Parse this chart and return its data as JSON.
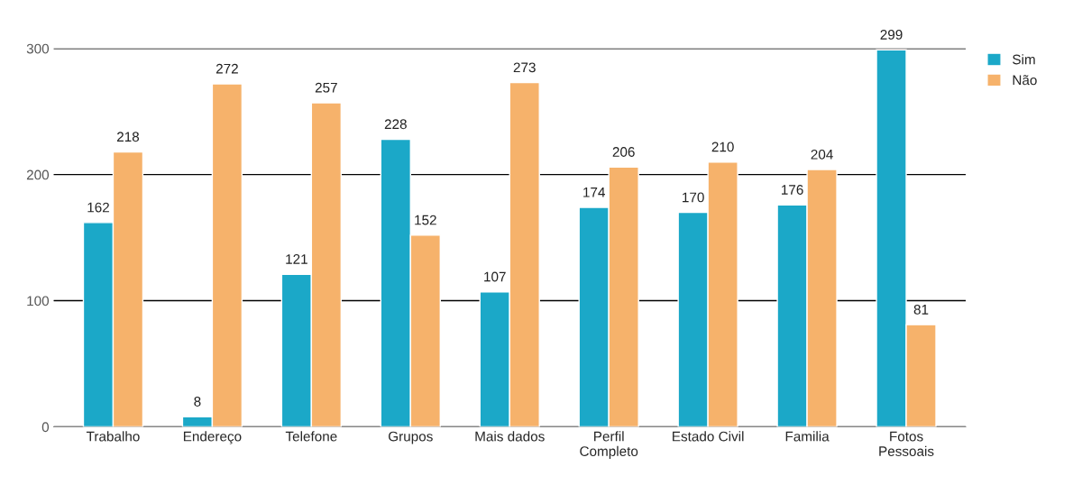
{
  "chart_data": {
    "type": "bar",
    "categories": [
      "Trabalho",
      "Endereço",
      "Telefone",
      "Grupos",
      "Mais dados",
      "Perfil\nCompleto",
      "Estado Civil",
      "Familia",
      "Fotos\nPessoais"
    ],
    "series": [
      {
        "name": "Sim",
        "color": "#1ba8c8",
        "values": [
          162,
          8,
          121,
          228,
          107,
          174,
          170,
          176,
          299
        ]
      },
      {
        "name": "Não",
        "color": "#f6b26b",
        "values": [
          218,
          272,
          257,
          152,
          273,
          206,
          210,
          204,
          81
        ]
      }
    ],
    "ylim": [
      0,
      300
    ],
    "yticks": [
      0,
      100,
      200,
      300
    ],
    "grid": "y",
    "legend": "top right",
    "data_labels": true
  }
}
